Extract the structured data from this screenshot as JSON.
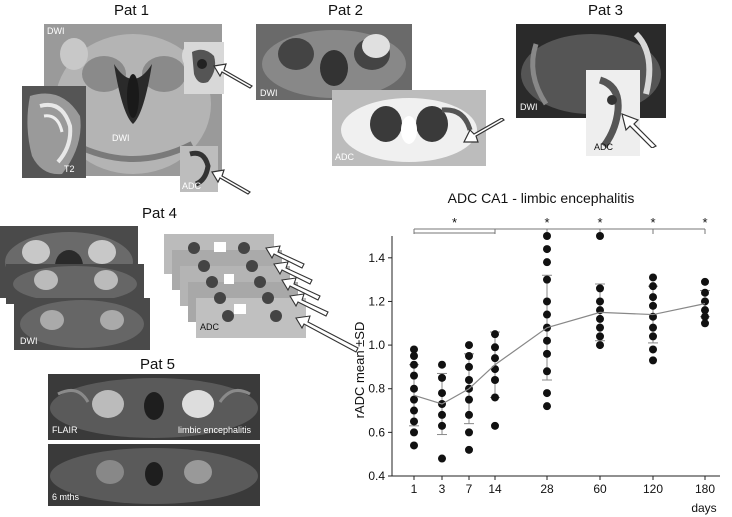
{
  "panels": {
    "pat1": {
      "title": "Pat 1",
      "labels": {
        "dwi_top": "DWI",
        "dwi_center": "DWI",
        "t2": "T2",
        "adc": "ADC"
      }
    },
    "pat2": {
      "title": "Pat 2",
      "labels": {
        "dwi": "DWI",
        "adc": "ADC"
      }
    },
    "pat3": {
      "title": "Pat 3",
      "labels": {
        "dwi": "DWI",
        "adc": "ADC"
      }
    },
    "pat4": {
      "title": "Pat 4",
      "labels": {
        "dwi": "DWI",
        "adc": "ADC"
      }
    },
    "pat5": {
      "title": "Pat 5",
      "labels": {
        "flair": "FLAIR",
        "limbic": "limbic encephalitis",
        "followup": "6 mths"
      }
    }
  },
  "chart_data": {
    "type": "scatter",
    "title": "ADC CA1 - limbic encephalitis",
    "ylabel": "rADC mean ±SD",
    "xlabel": "days",
    "ylim": [
      0.4,
      1.5
    ],
    "yticks": [
      "0.4",
      "0.6",
      "0.8",
      "1.0",
      "1.2",
      "1.4"
    ],
    "categories": [
      "1",
      "3",
      "7",
      "14",
      "28",
      "60",
      "120",
      "180"
    ],
    "mean": [
      0.77,
      0.73,
      0.8,
      0.91,
      1.08,
      1.15,
      1.14,
      1.19
    ],
    "sd": [
      0.14,
      0.14,
      0.16,
      0.15,
      0.24,
      0.13,
      0.13,
      0.06
    ],
    "points": [
      [
        0.98,
        0.95,
        0.91,
        0.86,
        0.8,
        0.75,
        0.7,
        0.65,
        0.6,
        0.54
      ],
      [
        0.91,
        0.85,
        0.78,
        0.73,
        0.68,
        0.63,
        0.48
      ],
      [
        1.0,
        0.95,
        0.9,
        0.84,
        0.8,
        0.75,
        0.68,
        0.6,
        0.52
      ],
      [
        1.05,
        0.99,
        0.94,
        0.89,
        0.84,
        0.76,
        0.63
      ],
      [
        1.5,
        1.44,
        1.38,
        1.3,
        1.2,
        1.14,
        1.08,
        1.02,
        0.96,
        0.88,
        0.78,
        0.72
      ],
      [
        1.5,
        1.26,
        1.2,
        1.16,
        1.12,
        1.08,
        1.04,
        1.0
      ],
      [
        1.31,
        1.27,
        1.22,
        1.18,
        1.13,
        1.08,
        1.04,
        0.98,
        0.93
      ],
      [
        1.29,
        1.24,
        1.2,
        1.16,
        1.13,
        1.1
      ]
    ],
    "significance": {
      "marker": "*",
      "groups": [
        [
          "1",
          "14"
        ],
        [
          "28"
        ],
        [
          "60"
        ],
        [
          "120"
        ],
        [
          "180"
        ]
      ]
    },
    "grid": false
  }
}
